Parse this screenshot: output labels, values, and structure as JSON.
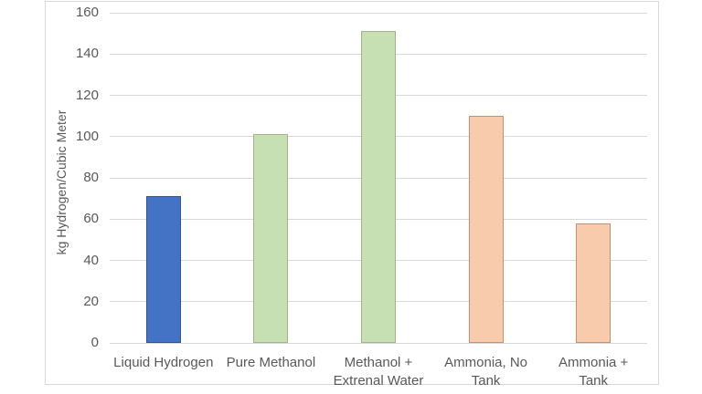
{
  "chart_data": {
    "type": "bar",
    "title": "",
    "xlabel": "",
    "ylabel": "kg Hydrogen/Cubic Meter",
    "ylim": [
      0,
      160
    ],
    "yticks": [
      0,
      20,
      40,
      60,
      80,
      100,
      120,
      140,
      160
    ],
    "grid": true,
    "legend": false,
    "categories": [
      "Liquid Hydrogen",
      "Pure Methanol",
      "Methanol + Extrenal Water",
      "Ammonia, No Tank",
      "Ammonia + Tank"
    ],
    "values": [
      71,
      101,
      151,
      110,
      58
    ],
    "bar_styles": [
      {
        "fill": "#4472C4",
        "border": "#2F5597"
      },
      {
        "fill": "#C6E0B4",
        "border": "#A3B586"
      },
      {
        "fill": "#C6E0B4",
        "border": "#A3B586"
      },
      {
        "fill": "#F8CBAD",
        "border": "#C6906A"
      },
      {
        "fill": "#F8CBAD",
        "border": "#C6906A"
      }
    ],
    "palette": {
      "gridline": "#D9D9D9",
      "axis_text": "#595959",
      "frame_border": "#D9D9D9",
      "background": "#FFFFFF"
    }
  }
}
